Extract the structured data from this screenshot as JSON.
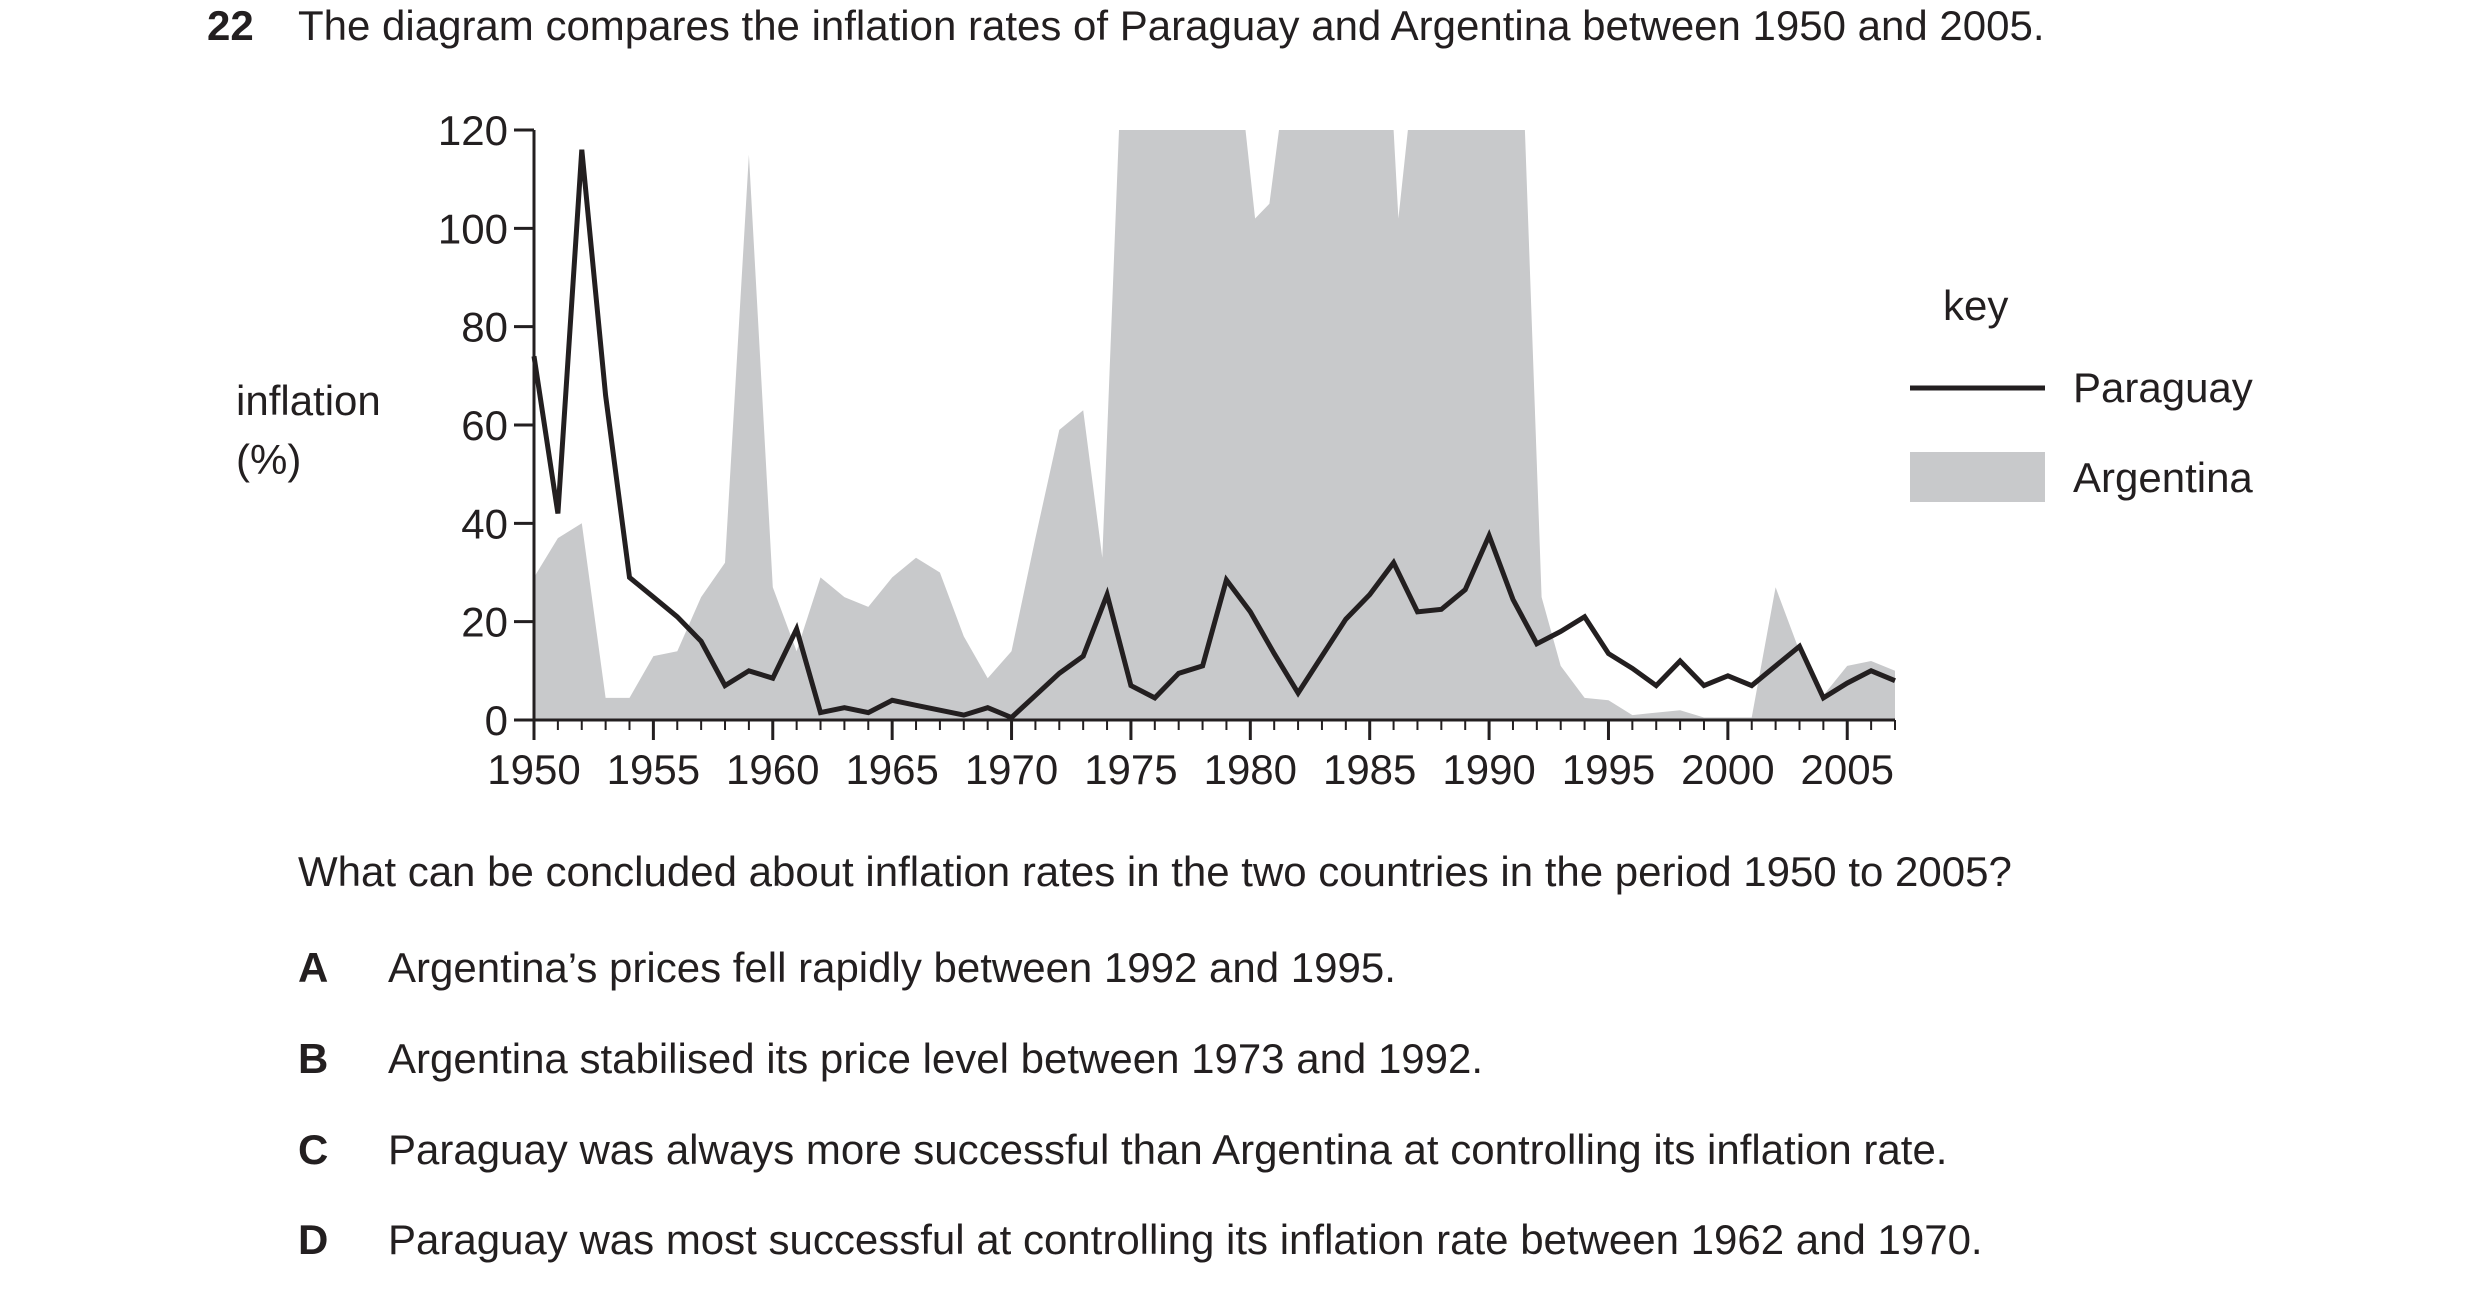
{
  "question": {
    "number": "22",
    "stem": "The diagram compares the inflation rates of Paraguay and Argentina between 1950 and 2005.",
    "prompt": "What can be concluded about inflation rates in the two countries in the period 1950 to 2005?",
    "options": [
      {
        "letter": "A",
        "text": "Argentina’s prices fell rapidly between 1992 and 1995."
      },
      {
        "letter": "B",
        "text": "Argentina stabilised its price level between 1973 and 1992."
      },
      {
        "letter": "C",
        "text": "Paraguay was always more successful than Argentina at controlling its inflation rate."
      },
      {
        "letter": "D",
        "text": "Paraguay was most successful at controlling its inflation rate between 1962 and 1970."
      }
    ]
  },
  "chart_data": {
    "type": "area",
    "title": "",
    "xlabel": "",
    "ylabel_lines": [
      "inflation",
      "(%)"
    ],
    "xlim": [
      1950,
      2007
    ],
    "ylim": [
      0,
      120
    ],
    "yticks": [
      0,
      20,
      40,
      60,
      80,
      100,
      120
    ],
    "xticks": [
      1950,
      1955,
      1960,
      1965,
      1970,
      1975,
      1980,
      1985,
      1990,
      1995,
      2000,
      2005
    ],
    "grid": false,
    "legend": {
      "title": "key",
      "placement": "right",
      "entries": [
        {
          "name": "Paraguay",
          "style": "line"
        },
        {
          "name": "Argentina",
          "style": "area"
        }
      ]
    },
    "colors": {
      "paraguay": "#231f20",
      "argentina": "#c8c9cb",
      "axis": "#231f20"
    },
    "series": [
      {
        "name": "Paraguay",
        "style": "line",
        "points": [
          [
            1950,
            74
          ],
          [
            1951,
            42
          ],
          [
            1952,
            116
          ],
          [
            1953,
            66
          ],
          [
            1954,
            29
          ],
          [
            1955,
            25
          ],
          [
            1956,
            21
          ],
          [
            1957,
            16
          ],
          [
            1958,
            7
          ],
          [
            1959,
            10
          ],
          [
            1960,
            8.5
          ],
          [
            1961,
            18.5
          ],
          [
            1962,
            1.5
          ],
          [
            1963,
            2.5
          ],
          [
            1964,
            1.5
          ],
          [
            1965,
            4
          ],
          [
            1966,
            3
          ],
          [
            1967,
            2
          ],
          [
            1968,
            1
          ],
          [
            1969,
            2.5
          ],
          [
            1970,
            0.5
          ],
          [
            1971,
            5
          ],
          [
            1972,
            9.5
          ],
          [
            1973,
            13
          ],
          [
            1974,
            25.5
          ],
          [
            1975,
            7
          ],
          [
            1976,
            4.5
          ],
          [
            1977,
            9.5
          ],
          [
            1978,
            11
          ],
          [
            1979,
            28.5
          ],
          [
            1980,
            22
          ],
          [
            1981,
            13.5
          ],
          [
            1982,
            5.5
          ],
          [
            1983,
            13
          ],
          [
            1984,
            20.5
          ],
          [
            1985,
            25.5
          ],
          [
            1986,
            32
          ],
          [
            1987,
            22
          ],
          [
            1988,
            22.5
          ],
          [
            1989,
            26.5
          ],
          [
            1990,
            37.5
          ],
          [
            1991,
            24.5
          ],
          [
            1992,
            15.5
          ],
          [
            1993,
            18
          ],
          [
            1994,
            21
          ],
          [
            1995,
            13.5
          ],
          [
            1996,
            10.5
          ],
          [
            1997,
            7
          ],
          [
            1998,
            12
          ],
          [
            1999,
            7
          ],
          [
            2000,
            9
          ],
          [
            2001,
            7
          ],
          [
            2002,
            11
          ],
          [
            2003,
            15
          ],
          [
            2004,
            4.5
          ],
          [
            2005,
            7.5
          ],
          [
            2006,
            10
          ],
          [
            2007,
            8
          ]
        ]
      },
      {
        "name": "Argentina",
        "style": "area",
        "points": [
          [
            1950,
            29
          ],
          [
            1951,
            37
          ],
          [
            1952,
            40
          ],
          [
            1953,
            4.5
          ],
          [
            1954,
            4.5
          ],
          [
            1955,
            13
          ],
          [
            1956,
            14
          ],
          [
            1957,
            25
          ],
          [
            1958,
            32
          ],
          [
            1959,
            115
          ],
          [
            1960,
            27
          ],
          [
            1961,
            14
          ],
          [
            1962,
            29
          ],
          [
            1963,
            25
          ],
          [
            1964,
            23
          ],
          [
            1965,
            29
          ],
          [
            1966,
            33
          ],
          [
            1967,
            30
          ],
          [
            1968,
            17
          ],
          [
            1969,
            8.5
          ],
          [
            1970,
            14
          ],
          [
            1971,
            37
          ],
          [
            1972,
            59
          ],
          [
            1973,
            63
          ],
          [
            1973.8,
            33
          ],
          [
            1974.5,
            120
          ],
          [
            1979.8,
            120
          ],
          [
            1980.2,
            102
          ],
          [
            1980.8,
            105
          ],
          [
            1981.2,
            120
          ],
          [
            1986,
            120
          ],
          [
            1986.2,
            102
          ],
          [
            1986.6,
            120
          ],
          [
            1991.5,
            120
          ],
          [
            1992.2,
            25
          ],
          [
            1993,
            11
          ],
          [
            1994,
            4.5
          ],
          [
            1995,
            4
          ],
          [
            1996,
            1
          ],
          [
            1997,
            1.5
          ],
          [
            1998,
            2
          ],
          [
            1999,
            0.5
          ],
          [
            2000,
            0.5
          ],
          [
            2001,
            0.5
          ],
          [
            2002,
            27
          ],
          [
            2003,
            14
          ],
          [
            2004,
            5
          ],
          [
            2005,
            11
          ],
          [
            2006,
            12
          ],
          [
            2007,
            10
          ]
        ]
      }
    ]
  }
}
